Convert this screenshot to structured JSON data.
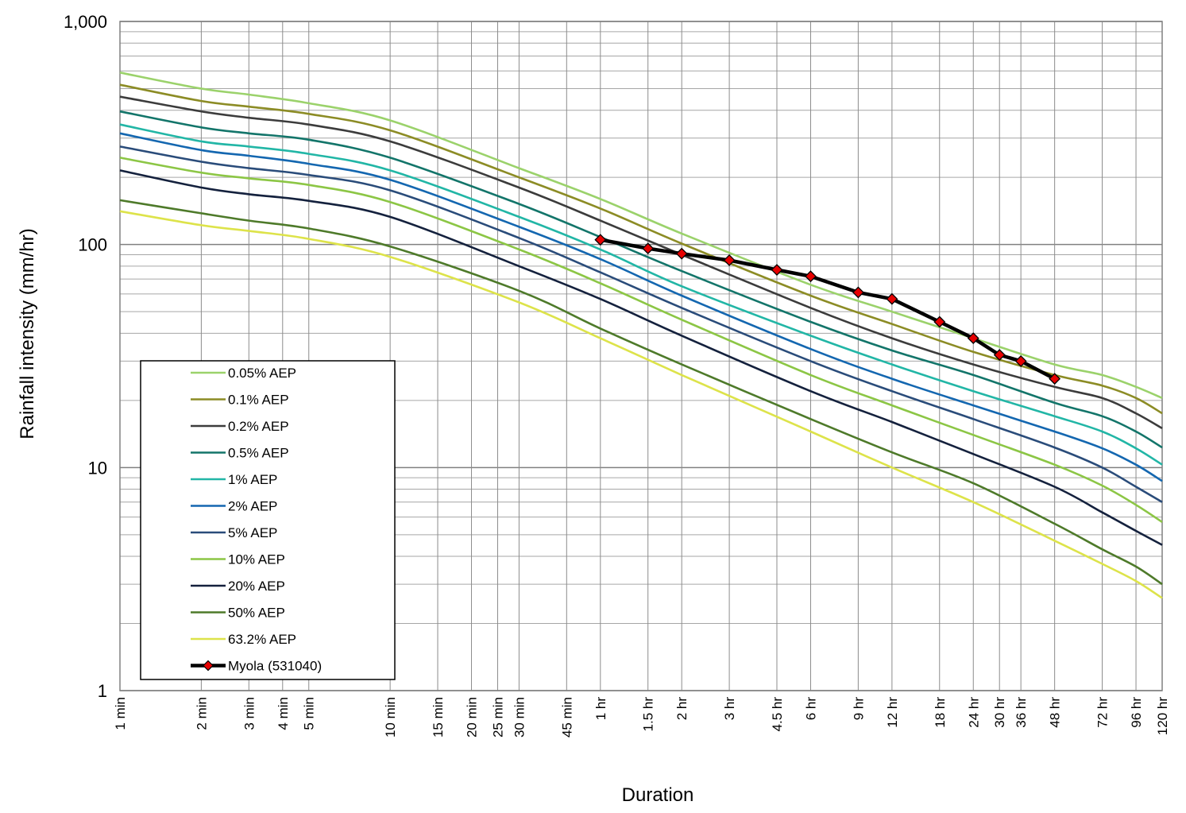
{
  "chart_data": {
    "type": "line",
    "xlabel": "Duration",
    "ylabel": "Rainfall intensity (mm/hr)",
    "x_scale": "log",
    "y_scale": "log",
    "x_unit": "minutes",
    "ylim": [
      1,
      1000
    ],
    "xlim": [
      1,
      7200
    ],
    "grid": true,
    "legend_position": "lower-left",
    "y_ticks": [
      {
        "value": 1,
        "label": "1"
      },
      {
        "value": 10,
        "label": "10"
      },
      {
        "value": 100,
        "label": "100"
      },
      {
        "value": 1000,
        "label": "1,000"
      }
    ],
    "x_ticks": [
      {
        "value": 1,
        "label": "1 min"
      },
      {
        "value": 2,
        "label": "2 min"
      },
      {
        "value": 3,
        "label": "3 min"
      },
      {
        "value": 4,
        "label": "4 min"
      },
      {
        "value": 5,
        "label": "5 min"
      },
      {
        "value": 10,
        "label": "10 min"
      },
      {
        "value": 15,
        "label": "15 min"
      },
      {
        "value": 20,
        "label": "20 min"
      },
      {
        "value": 25,
        "label": "25 min"
      },
      {
        "value": 30,
        "label": "30 min"
      },
      {
        "value": 45,
        "label": "45 min"
      },
      {
        "value": 60,
        "label": "1 hr"
      },
      {
        "value": 90,
        "label": "1.5 hr"
      },
      {
        "value": 120,
        "label": "2 hr"
      },
      {
        "value": 180,
        "label": "3 hr"
      },
      {
        "value": 270,
        "label": "4.5 hr"
      },
      {
        "value": 360,
        "label": "6 hr"
      },
      {
        "value": 540,
        "label": "9 hr"
      },
      {
        "value": 720,
        "label": "12 hr"
      },
      {
        "value": 1080,
        "label": "18 hr"
      },
      {
        "value": 1440,
        "label": "24 hr"
      },
      {
        "value": 1800,
        "label": "30 hr"
      },
      {
        "value": 2160,
        "label": "36 hr"
      },
      {
        "value": 2880,
        "label": "48 hr"
      },
      {
        "value": 4320,
        "label": "72 hr"
      },
      {
        "value": 5760,
        "label": "96 hr"
      },
      {
        "value": 7200,
        "label": "120 hr"
      }
    ],
    "x": [
      1,
      2,
      3,
      5,
      10,
      30,
      60,
      120,
      360,
      720,
      1440,
      2880,
      4320,
      5760,
      7200
    ],
    "series": [
      {
        "name": "0.05% AEP",
        "color": "#9BD26B",
        "values": [
          590,
          500,
          470,
          430,
          360,
          220,
          160,
          112,
          66,
          50,
          38,
          29,
          26,
          23,
          20.5
        ]
      },
      {
        "name": "0.1% AEP",
        "color": "#8C8C25",
        "values": [
          520,
          440,
          415,
          385,
          325,
          200,
          145,
          101,
          59,
          44,
          33,
          26,
          23.3,
          20.5,
          17.5
        ]
      },
      {
        "name": "0.2% AEP",
        "color": "#3C3C3C",
        "values": [
          460,
          395,
          370,
          345,
          290,
          180,
          128,
          90,
          52,
          38,
          29,
          23,
          20.5,
          17.5,
          15
        ]
      },
      {
        "name": "0.5% AEP",
        "color": "#13756A",
        "values": [
          395,
          335,
          315,
          295,
          245,
          152,
          108,
          76,
          45,
          33.5,
          26,
          19.5,
          17,
          14.5,
          12.3
        ]
      },
      {
        "name": "1% AEP",
        "color": "#22B6A6",
        "values": [
          345,
          290,
          275,
          255,
          215,
          133,
          95,
          65,
          39,
          29,
          22,
          17,
          14.5,
          12.2,
          10.3
        ]
      },
      {
        "name": "2% AEP",
        "color": "#1467B0",
        "values": [
          315,
          265,
          250,
          230,
          195,
          120,
          86,
          59,
          34,
          25,
          19,
          14.5,
          12.2,
          10.3,
          8.7
        ]
      },
      {
        "name": "5% AEP",
        "color": "#2A4C7A",
        "values": [
          275,
          235,
          220,
          205,
          175,
          107,
          75,
          52,
          30,
          22,
          16.5,
          12.3,
          10,
          8.2,
          7
        ]
      },
      {
        "name": "10% AEP",
        "color": "#8CC645",
        "values": [
          245,
          210,
          198,
          185,
          155,
          95,
          67,
          46,
          26,
          19,
          14,
          10.3,
          8.3,
          6.8,
          5.7
        ]
      },
      {
        "name": "20% AEP",
        "color": "#14213D",
        "values": [
          215,
          180,
          168,
          157,
          133,
          80,
          57,
          39,
          22,
          16,
          11.5,
          8.2,
          6.3,
          5.2,
          4.5
        ]
      },
      {
        "name": "50% AEP",
        "color": "#4E7A2A",
        "values": [
          158,
          138,
          128,
          118,
          98,
          62,
          42,
          29,
          16.5,
          11.7,
          8.5,
          5.6,
          4.3,
          3.6,
          3
        ]
      },
      {
        "name": "63.2% AEP",
        "color": "#DDE34A",
        "values": [
          141,
          122,
          115,
          106,
          88,
          55,
          38,
          26,
          14.5,
          10,
          7,
          4.7,
          3.7,
          3.1,
          2.6
        ]
      }
    ],
    "observed": {
      "name": "Myola (531040)",
      "line_color": "#000000",
      "marker_color": "#E60000",
      "x": [
        60,
        90,
        120,
        180,
        270,
        360,
        540,
        720,
        1080,
        1440,
        1800,
        2160,
        2880
      ],
      "values": [
        105,
        96,
        91,
        85,
        77,
        72,
        61,
        57,
        45,
        38,
        32,
        30,
        25
      ]
    }
  }
}
